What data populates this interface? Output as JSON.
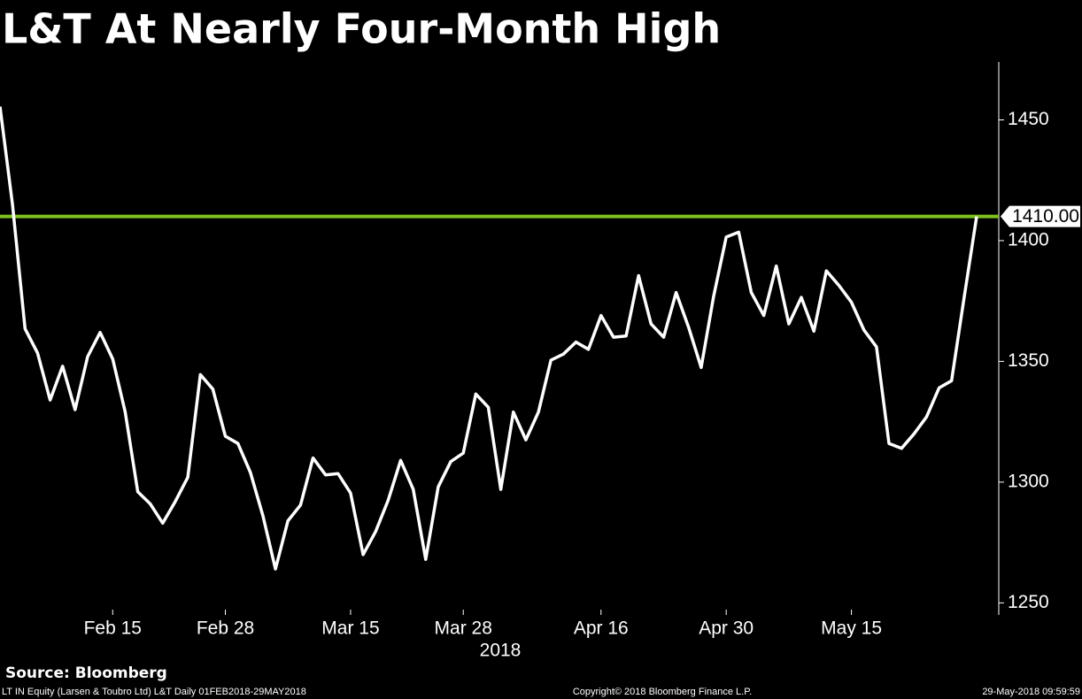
{
  "chart_data": {
    "type": "line",
    "title": "L&T At Nearly Four-Month High",
    "source": "Source: Bloomberg",
    "footer_left": "LT IN Equity (Larsen & Toubro Ltd) L&T  Daily 01FEB2018-29MAY2018",
    "footer_center": "Copyright© 2018 Bloomberg Finance L.P.",
    "footer_right": "29-May-2018 09:59:59",
    "x_label": "2018",
    "categories": [
      null,
      null,
      null,
      null,
      null,
      null,
      null,
      null,
      null,
      "Feb 15",
      null,
      null,
      null,
      null,
      null,
      null,
      null,
      null,
      "Feb 28",
      null,
      null,
      null,
      null,
      null,
      null,
      null,
      null,
      null,
      "Mar 15",
      null,
      null,
      null,
      null,
      null,
      null,
      null,
      null,
      "Mar 28",
      null,
      null,
      null,
      null,
      null,
      null,
      null,
      null,
      null,
      null,
      "Apr 16",
      null,
      null,
      null,
      null,
      null,
      null,
      null,
      null,
      null,
      "Apr 30",
      null,
      null,
      null,
      null,
      null,
      null,
      null,
      null,
      null,
      "May 15",
      null,
      null,
      null,
      null,
      null,
      null,
      null,
      null,
      null,
      null
    ],
    "series": [
      {
        "name": "L&T",
        "color": "#ffffff",
        "values": [
          1455.5,
          1415,
          1363.5,
          1353.5,
          1334,
          1348,
          1330,
          1352,
          1362,
          1351,
          1329,
          1296,
          1291,
          1283,
          1292,
          1302,
          1344.5,
          1338.5,
          1319,
          1316,
          1304,
          1286,
          1264,
          1284,
          1290.5,
          1310,
          1303,
          1303.5,
          1295.5,
          1270,
          1279.5,
          1292.5,
          1309,
          1297,
          1268,
          1298,
          1308.5,
          1312,
          1336.5,
          1331,
          1297,
          1329,
          1317.5,
          1329,
          1350.5,
          1353,
          1358,
          1355,
          1369,
          1360,
          1360.5,
          1385.5,
          1365.5,
          1360,
          1378.5,
          1364,
          1347.5,
          1377,
          1401.5,
          1403.5,
          1378.5,
          1369,
          1389.5,
          1365.5,
          1376.5,
          1362.5,
          1387.5,
          1381.5,
          1374.5,
          1363,
          1356,
          1316,
          1314,
          1320,
          1327,
          1339,
          1342,
          1376.5,
          1410
        ]
      }
    ],
    "hline": {
      "value": 1410,
      "label": "1410.00",
      "color": "#7dc21e"
    },
    "ylim": [
      1245,
      1474
    ],
    "yticks": [
      1250,
      1300,
      1350,
      1400,
      1450
    ],
    "y_axis_side": "right",
    "background": "#000000"
  }
}
